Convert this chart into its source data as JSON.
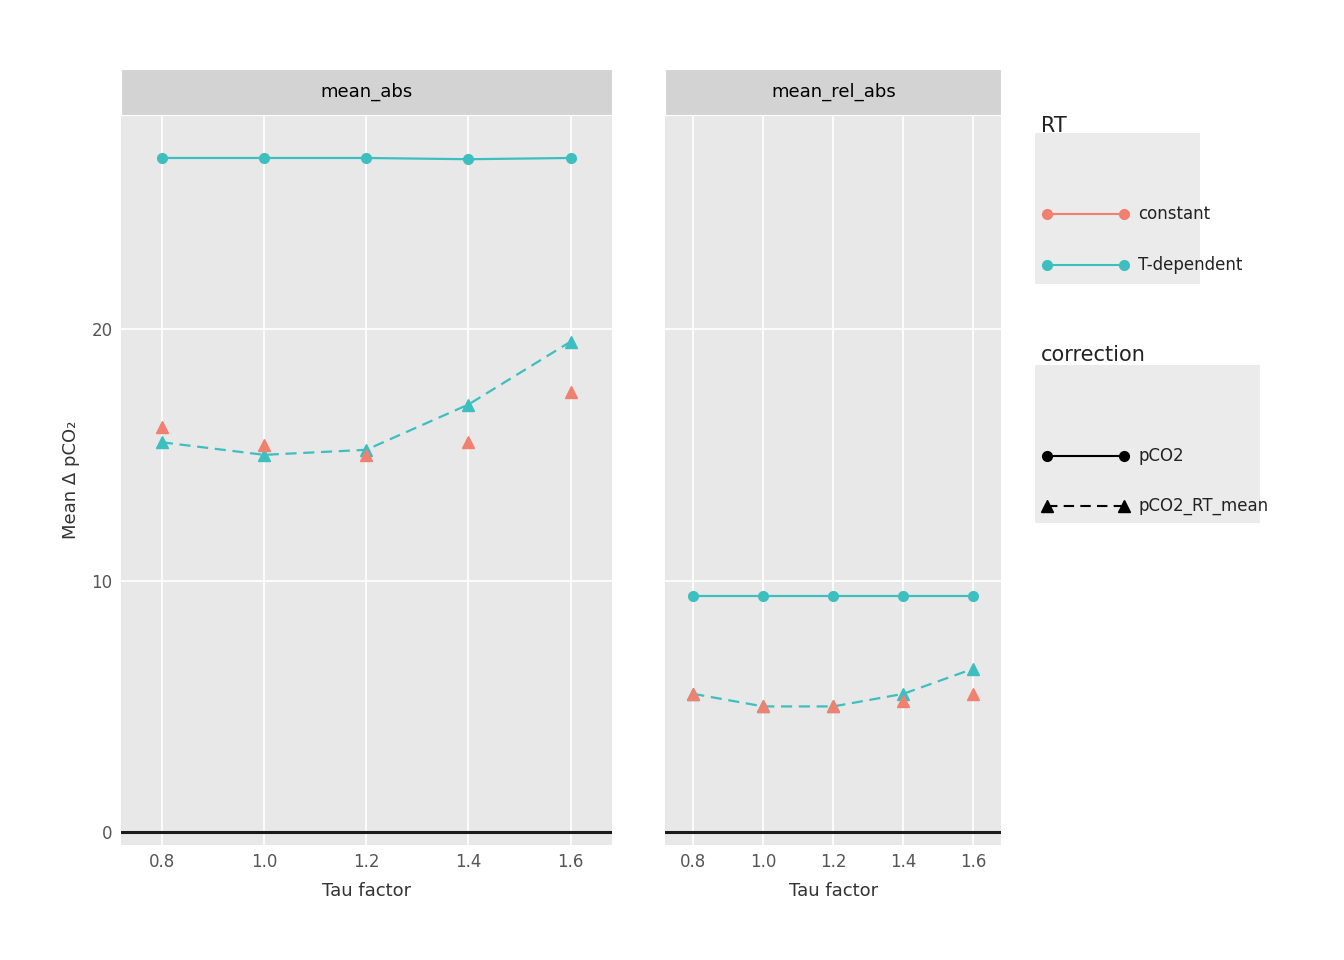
{
  "tau_factors": [
    0.8,
    1.0,
    1.2,
    1.4,
    1.6
  ],
  "panels": [
    "mean_abs",
    "mean_rel_abs"
  ],
  "left": {
    "teal_solid": [
      26.8,
      26.8,
      26.8,
      26.75,
      26.8
    ],
    "teal_dashed": [
      15.5,
      15.0,
      15.2,
      17.0,
      19.5
    ],
    "salmon_tri": [
      16.1,
      15.4,
      15.0,
      15.5,
      17.5
    ]
  },
  "right": {
    "teal_solid": [
      9.4,
      9.4,
      9.4,
      9.4,
      9.4
    ],
    "teal_dashed": [
      5.5,
      5.0,
      5.0,
      5.5,
      6.5
    ],
    "salmon_tri": [
      5.5,
      5.0,
      5.0,
      5.2,
      5.5
    ]
  },
  "ylim": [
    -0.5,
    28.5
  ],
  "yticks": [
    0,
    10,
    20
  ],
  "xticks": [
    0.8,
    1.0,
    1.2,
    1.4,
    1.6
  ],
  "xlim": [
    0.72,
    1.68
  ],
  "xlabel": "Tau factor",
  "ylabel": "Mean Δ pCO₂",
  "color_teal": "#3dbfbf",
  "color_salmon": "#f08070",
  "panel_bg": "#e8e8e8",
  "header_bg": "#d3d3d3",
  "fig_bg": "#ffffff",
  "legend_box_bg": "#ebebeb",
  "grid_color": "#ffffff",
  "hline_color": "#1a1a1a",
  "legend_rt_title": "RT",
  "legend_rt_constant": "constant",
  "legend_rt_tdep": "T-dependent",
  "legend_corr_title": "correction",
  "legend_corr_pco2": "pCO2",
  "legend_corr_rtmean": "pCO2_RT_mean"
}
